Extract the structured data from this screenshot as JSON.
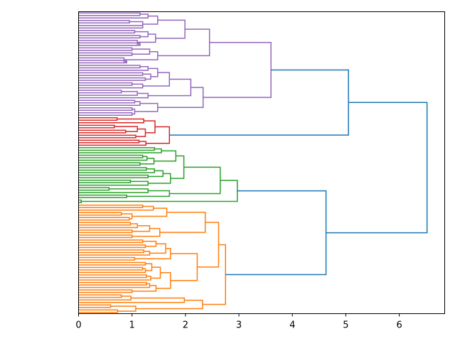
{
  "chart_data": {
    "type": "dendrogram",
    "orientation": "left",
    "title": "",
    "xlabel": "",
    "ylabel": "",
    "xlim": [
      0,
      6.85
    ],
    "xticks": [
      0,
      1,
      2,
      3,
      4,
      5,
      6
    ],
    "grid": false,
    "colors": {
      "above_threshold": "#1f77b4",
      "purple": "#9467bd",
      "red": "#d62728",
      "green": "#2ca02c",
      "orange": "#ff7f0e"
    },
    "tree": [
      6.52,
      [
        5.05,
        [
          3.6,
          [
            2.45,
            [
              1.99,
              [
                1.48,
                [
                  1.3,
                  [
                    1.15,
                    0,
                    0
                  ],
                  0
                ],
                [
                  1.2,
                  [
                    0.95,
                    0,
                    0
                  ],
                  [
                    1.2,
                    0,
                    0
                  ]
                ]
              ],
              [
                1.44,
                [
                  1.3,
                  [
                    1.05,
                    0,
                    0
                  ],
                  [
                    1.15,
                    0,
                    0
                  ]
                ],
                [
                  1.1,
                  0,
                  [
                    1.15,
                    0,
                    0
                  ]
                ]
              ]
            ],
            [
              1.48,
              [
                1.33,
                [
                  1.0,
                  0,
                  0
                ],
                [
                  1.0,
                  0,
                  0
                ]
              ],
              [
                0.85,
                0,
                [
                  0.9,
                  0,
                  0
                ]
              ]
            ]
          ],
          [
            2.33,
            [
              2.1,
              [
                1.7,
                [
                  1.48,
                  [
                    1.3,
                    [
                      1.15,
                      0,
                      0
                    ],
                    0
                  ],
                  [
                    1.35,
                    [
                      1.2,
                      0,
                      0
                    ],
                    [
                      1.25,
                      0,
                      0
                    ]
                  ]
                ],
                [
                  1.2,
                  [
                    1.0,
                    0,
                    0
                  ],
                  0
                ]
              ],
              [
                1.3,
                [
                  1.1,
                  [
                    0.8,
                    0,
                    0
                  ],
                  0
                ],
                0
              ]
            ],
            [
              1.48,
              [
                1.15,
                [
                  1.05,
                  0,
                  0
                ],
                0
              ],
              [
                1.05,
                [
                  1.0,
                  0,
                  0
                ],
                [
                  1.0,
                  0,
                  0
                ]
              ]
            ]
          ],
          "#9467bd"
        ],
        [
          1.7,
          [
            1.43,
            [
              1.22,
              [
                0.72,
                0,
                0
              ],
              0
            ],
            [
              1.25,
              [
                1.1,
                [
                  0.67,
                  0,
                  0
                ],
                [
                  0.88,
                  0,
                  0
                ]
              ],
              [
                1.07,
                0,
                0
              ]
            ]
          ],
          [
            1.26,
            [
              1.13,
              0,
              0
            ],
            0
          ],
          "#d62728"
        ]
      ],
      [
        4.63,
        [
          2.97,
          [
            2.65,
            [
              1.97,
              [
                1.82,
                [
                  1.55,
                  [
                    1.42,
                    0,
                    0
                  ],
                  0
                ],
                [
                  1.41,
                  [
                    1.28,
                    [
                      1.2,
                      0,
                      0
                    ],
                    0
                  ],
                  [
                    1.15,
                    0,
                    0
                  ]
                ]
              ],
              [
                1.72,
                [
                  1.58,
                  [
                    1.42,
                    [
                      1.27,
                      0,
                      0
                    ],
                    0
                  ],
                  [
                    1.3,
                    0,
                    0
                  ]
                ],
                [
                  1.3,
                  [
                    0.97,
                    0,
                    0
                  ],
                  0
                ]
              ]
            ],
            [
              1.7,
              [
                1.3,
                [
                  0.57,
                  0,
                  0
                ],
                0
              ],
              [
                0.9,
                0,
                0
              ]
            ]
          ],
          [
            0.05,
            0,
            0
          ],
          "#2ca02c"
        ],
        [
          2.75,
          [
            2.62,
            [
              2.37,
              [
                1.65,
                [
                  1.4,
                  [
                    1.2,
                    0,
                    0
                  ],
                  0
                ],
                [
                  1.0,
                  [
                    0.8,
                    0,
                    0
                  ],
                  [
                    0.95,
                    0,
                    0
                  ]
                ]
              ],
              [
                1.52,
                [
                  1.33,
                  [
                    1.1,
                    [
                      0.97,
                      0,
                      0
                    ],
                    0
                  ],
                  [
                    1.0,
                    0,
                    0
                  ]
                ],
                [
                  1.0,
                  0,
                  0
                ]
              ]
            ],
            [
              2.22,
              [
                1.72,
                [
                  1.63,
                  [
                    1.45,
                    [
                      1.2,
                      0,
                      0
                    ],
                    [
                      1.25,
                      0,
                      0
                    ]
                  ],
                  [
                    1.33,
                    [
                      1.22,
                      0,
                      0
                    ],
                    0
                  ]
                ],
                [
                  1.05,
                  0,
                  0
                ]
              ],
              [
                1.72,
                [
                  1.53,
                  [
                    1.37,
                    [
                      1.25,
                      0,
                      0
                    ],
                    [
                      1.25,
                      [
                        1.2,
                        0,
                        0
                      ],
                      0
                    ]
                  ],
                  [
                    1.35,
                    [
                      1.27,
                      0,
                      0
                    ],
                    0
                  ]
                ],
                [
                  1.45,
                  [
                    1.33,
                    [
                      1.27,
                      0,
                      0
                    ],
                    0
                  ],
                  [
                    1.0,
                    0,
                    0
                  ]
                ]
              ]
            ]
          ],
          [
            2.32,
            [
              1.98,
              [
                0.98,
                [
                  0.8,
                  0,
                  0
                ],
                0
              ],
              0
            ],
            [
              1.07,
              [
                0.6,
                0,
                0
              ],
              [
                0.73,
                0,
                0
              ]
            ]
          ],
          "#ff7f0e"
        ]
      ],
      "#1f77b4"
    ]
  }
}
